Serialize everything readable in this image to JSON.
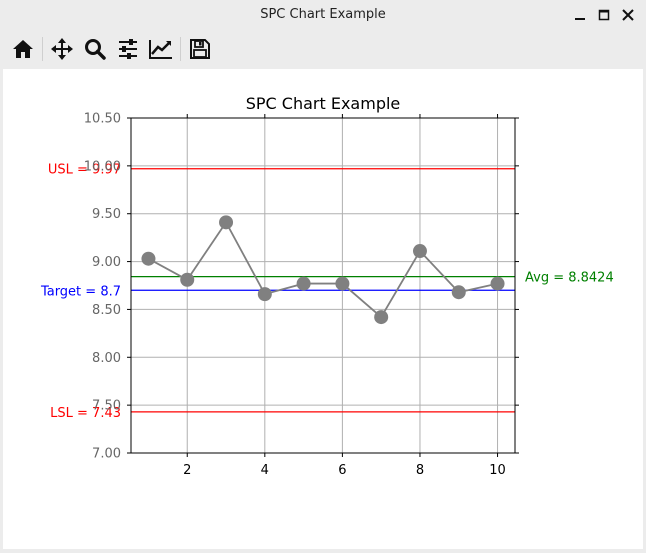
{
  "window": {
    "title": "SPC Chart Example",
    "controls": [
      "minimize",
      "maximize",
      "close"
    ]
  },
  "toolbar": {
    "buttons": [
      {
        "name": "home",
        "icon": "home-icon"
      },
      {
        "name": "pan",
        "icon": "move-icon"
      },
      {
        "name": "zoom",
        "icon": "magnifier-icon"
      },
      {
        "name": "configure-subplots",
        "icon": "sliders-icon"
      },
      {
        "name": "edit-axis",
        "icon": "line-chart-icon"
      },
      {
        "name": "save",
        "icon": "floppy-disk-icon"
      }
    ]
  },
  "chart_data": {
    "type": "line",
    "title": "SPC Chart Example",
    "xlabel": "",
    "ylabel": "",
    "xlim": [
      0.55,
      10.45
    ],
    "ylim": [
      7.0,
      10.5
    ],
    "xticks": [
      2,
      4,
      6,
      8,
      10
    ],
    "yticks": [
      7.0,
      7.5,
      8.0,
      8.5,
      9.0,
      9.5,
      10.0,
      10.5
    ],
    "ytick_labels": [
      "7.00",
      "7.50",
      "8.00",
      "8.50",
      "9.00",
      "9.50",
      "10.00",
      "10.50"
    ],
    "grid": true,
    "series": [
      {
        "x": [
          1,
          2,
          3,
          4,
          5,
          6,
          7,
          8,
          9,
          10
        ],
        "y": [
          9.03,
          8.81,
          9.41,
          8.66,
          8.77,
          8.77,
          8.42,
          9.11,
          8.68,
          8.77
        ],
        "line_color": "#808080",
        "marker_color": "#808080"
      }
    ],
    "reference_lines": [
      {
        "label": "USL = 9.97",
        "value": 9.97,
        "color": "#ff0000",
        "label_side": "left"
      },
      {
        "label": "Target = 8.7",
        "value": 8.7,
        "color": "#0000ff",
        "label_side": "left"
      },
      {
        "label": "LSL = 7.43",
        "value": 7.43,
        "color": "#ff0000",
        "label_side": "left"
      },
      {
        "label": "Avg = 8.8424",
        "value": 8.8424,
        "color": "#008000",
        "label_side": "right"
      }
    ]
  }
}
